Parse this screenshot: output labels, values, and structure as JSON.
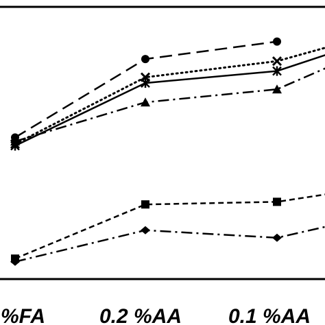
{
  "chart_data": {
    "type": "line",
    "title": "",
    "xlabel": "",
    "ylabel": "",
    "categories": [
      "%FA",
      "0.2 %AA",
      "0.1 %AA",
      ""
    ],
    "ylim": [
      0,
      100
    ],
    "grid": false,
    "series": [
      {
        "marker": "circle",
        "line": "dashed",
        "values": [
          52.5,
          82.6,
          89.3,
          null
        ]
      },
      {
        "marker": "x",
        "line": "dotted",
        "values": [
          50.0,
          75.6,
          81.8,
          88.5
        ]
      },
      {
        "marker": "asterisk",
        "line": "solid",
        "values": [
          49.3,
          73.4,
          78.0,
          86.0
        ]
      },
      {
        "marker": "triangle",
        "line": "dash-dot",
        "values": [
          51.0,
          66.0,
          71.0,
          81.5
        ]
      },
      {
        "marker": "square",
        "line": "short-dash",
        "values": [
          6.0,
          26.8,
          27.8,
          31.5
        ]
      },
      {
        "marker": "diamond",
        "line": "dash-dot",
        "values": [
          4.8,
          16.9,
          14.0,
          19.5
        ]
      }
    ],
    "colors": {
      "ink": "#000000",
      "background": "#ffffff"
    }
  }
}
